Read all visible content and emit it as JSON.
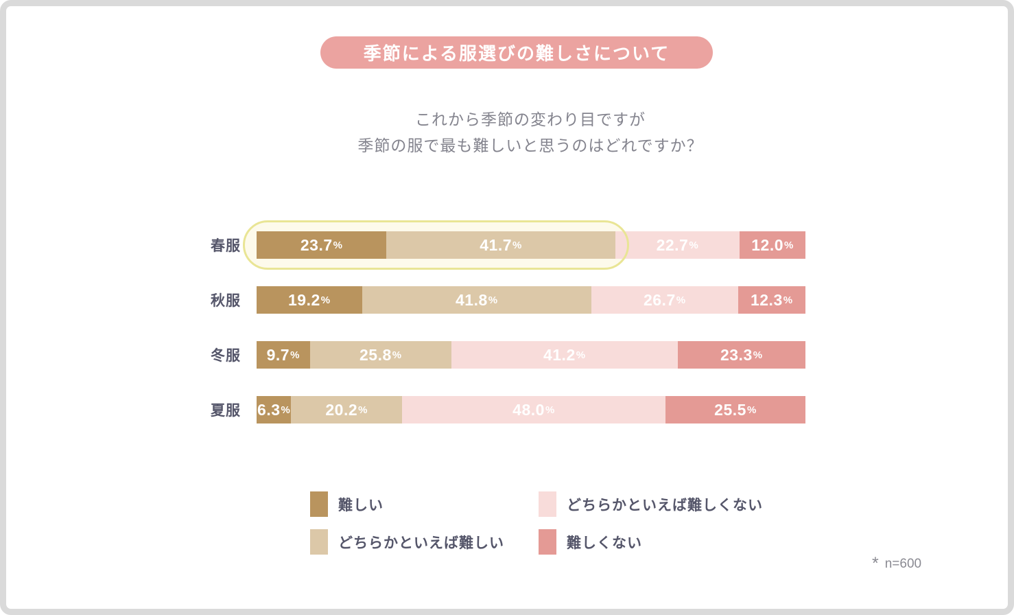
{
  "header": {
    "title": "季節による服選びの難しさについて",
    "subtitle_lines": [
      "これから季節の変わり目ですが",
      "季節の服で最も難しいと思うのはどれですか？"
    ]
  },
  "chart_data": {
    "type": "bar",
    "orientation": "horizontal-stacked",
    "unit": "%",
    "xlim": [
      0,
      100
    ],
    "categories": [
      "春服",
      "秋服",
      "冬服",
      "夏服"
    ],
    "series": [
      {
        "name": "難しい",
        "color": "#b9945e",
        "values": [
          "23.7",
          "19.2",
          "9.7",
          "6.3"
        ]
      },
      {
        "name": "どちらかといえば難しい",
        "color": "#dcc8a8",
        "values": [
          "41.7",
          "41.8",
          "25.8",
          "20.2"
        ]
      },
      {
        "name": "どちらかといえば難しくない",
        "color": "#f8dcda",
        "values": [
          "22.7",
          "26.7",
          "41.2",
          "48.0"
        ]
      },
      {
        "name": "難しくない",
        "color": "#e49a95",
        "values": [
          "12.0",
          "12.3",
          "23.3",
          "25.5"
        ]
      }
    ],
    "value_label_color": "#ffffff",
    "legend_position": "bottom",
    "legend_columns": 2,
    "legend_order": [
      0,
      2,
      1,
      3
    ],
    "highlight": {
      "category_index": 0,
      "series_span": [
        0,
        1
      ],
      "border_color": "#e9e595",
      "fill_color": "#fdfaeb"
    }
  },
  "footnote": {
    "marker": "*",
    "text": "n=600"
  },
  "colors": {
    "title_pill_bg": "#eba3a0",
    "title_text": "#ffffff",
    "subtitle_text": "#84848e",
    "label_text": "#55566a",
    "footnote_text": "#8a8a92",
    "frame_border": "#dadada",
    "background": "#ffffff"
  }
}
